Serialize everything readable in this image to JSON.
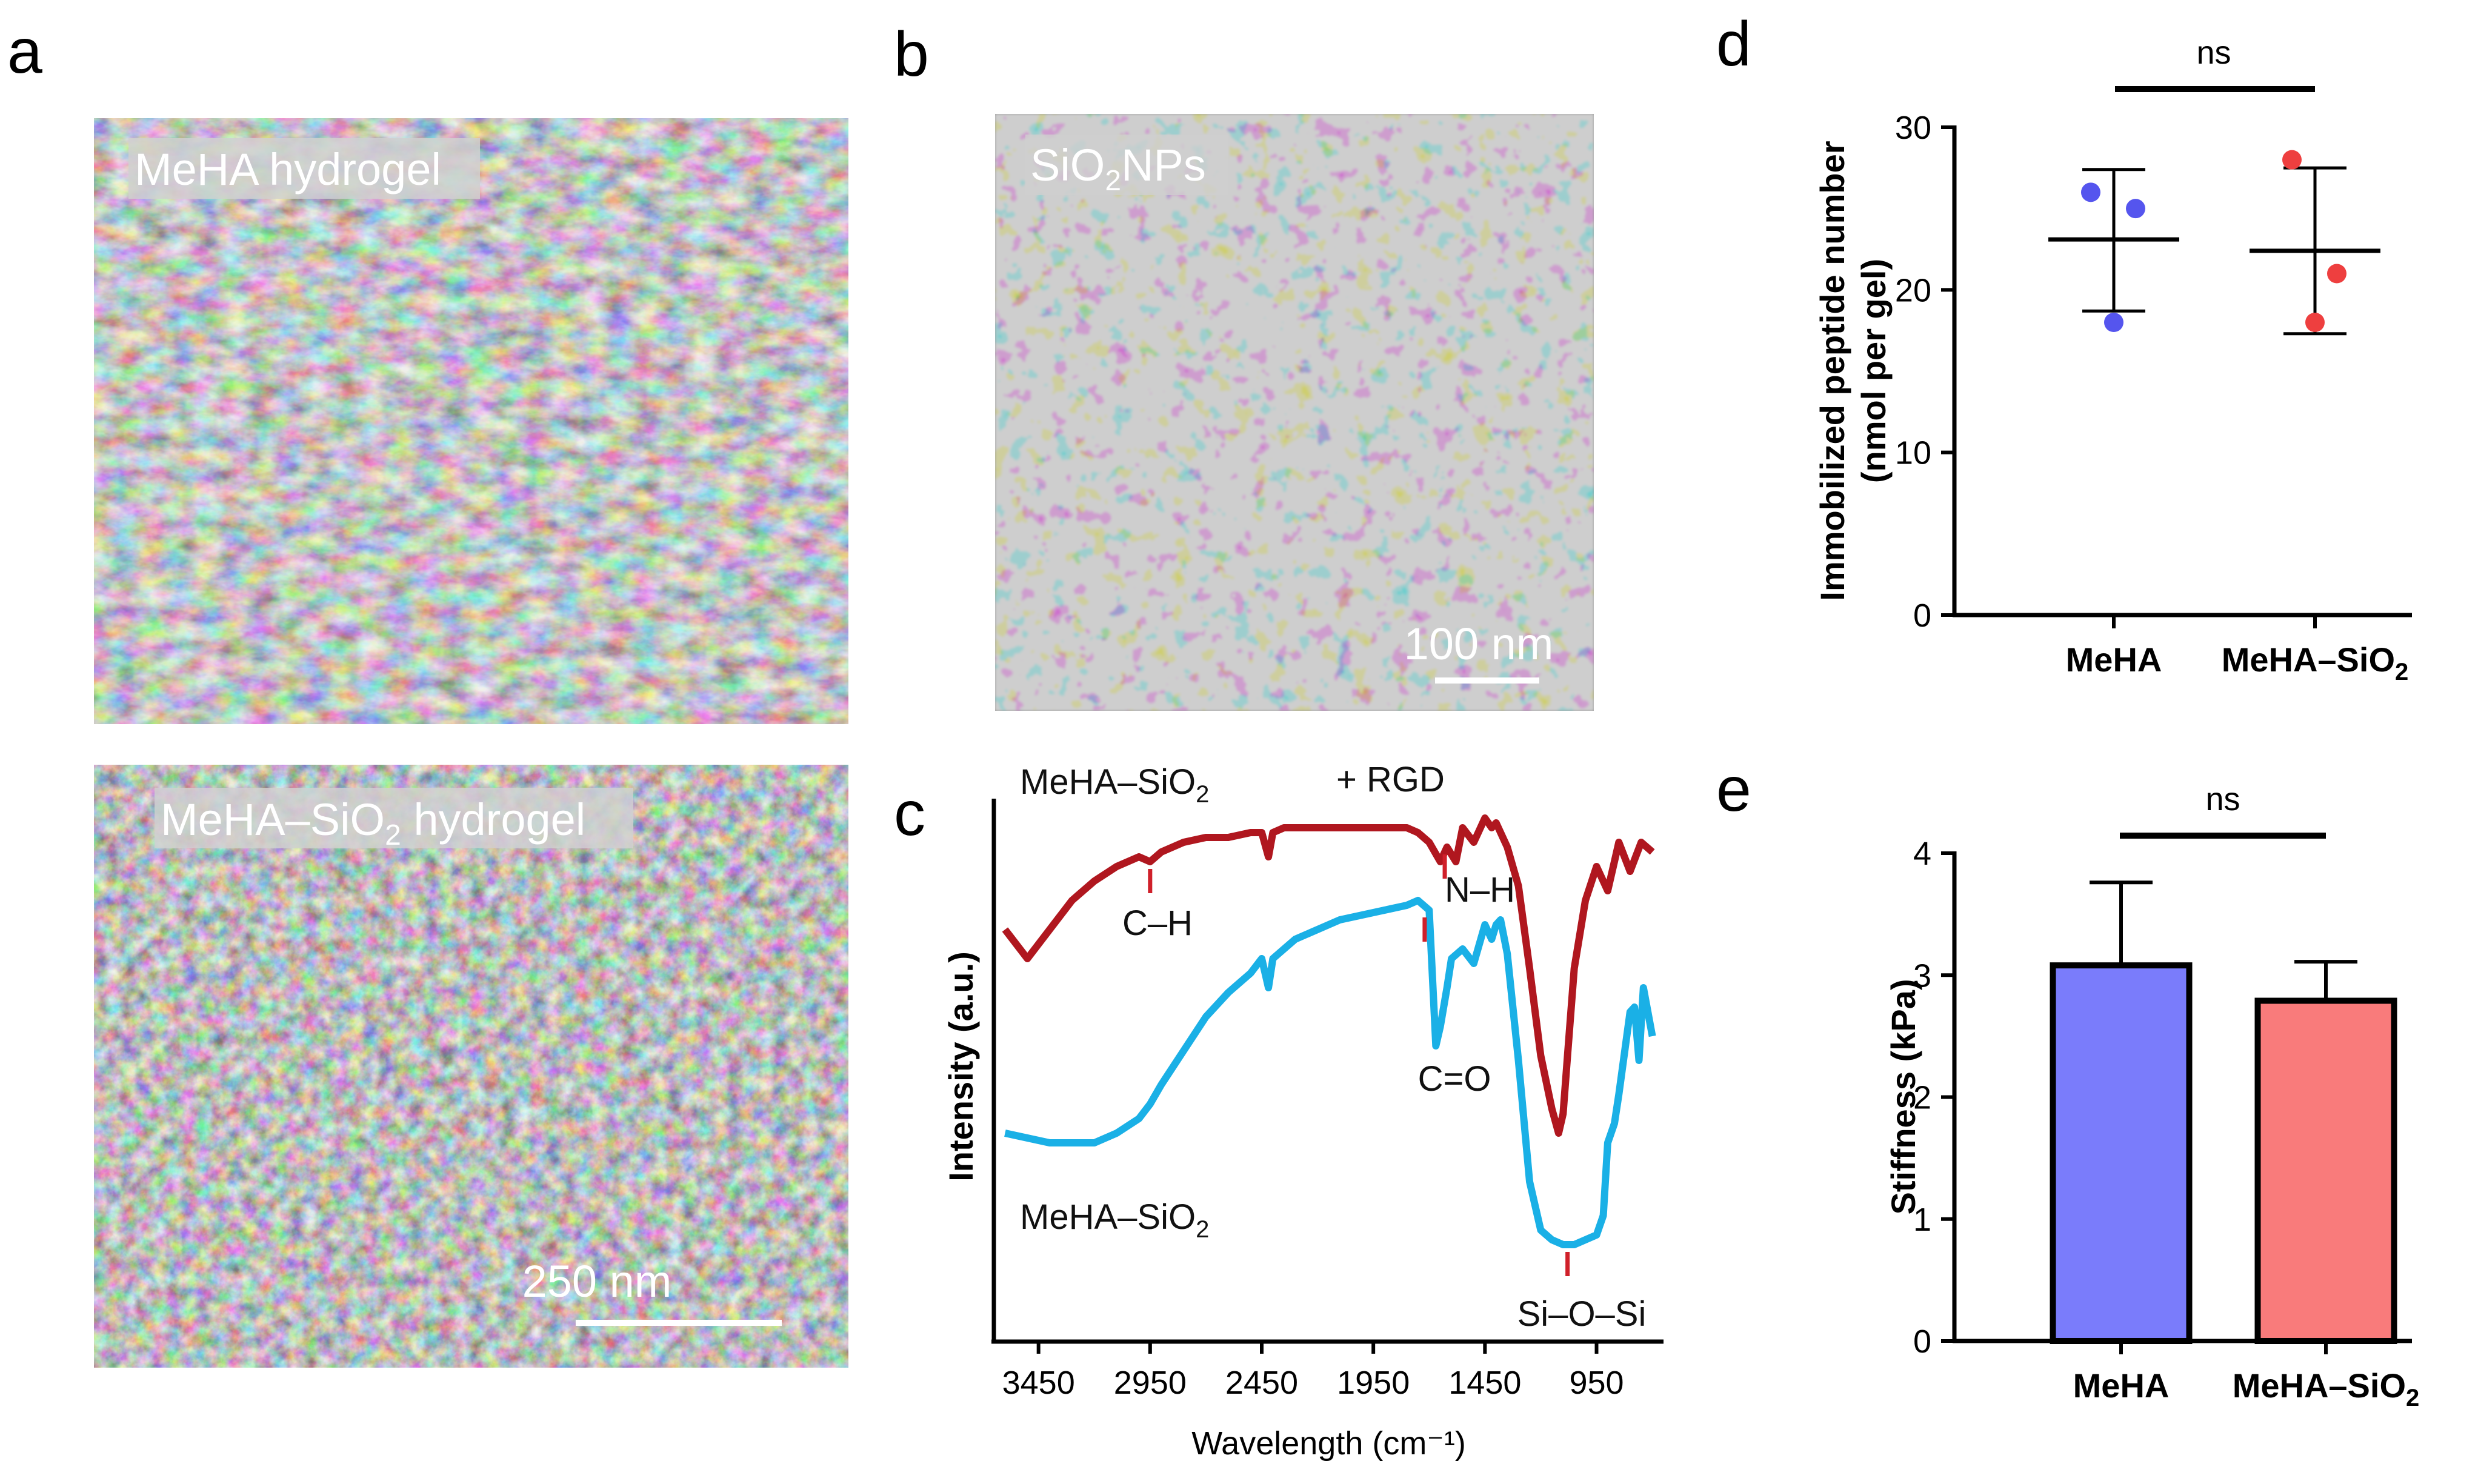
{
  "panels": {
    "a": {
      "label": "a",
      "top_image": {
        "tag": "MeHA hydrogel"
      },
      "bottom_image": {
        "tag_prefix": "MeHA–SiO",
        "tag_sub": "2",
        "tag_suffix": " hydrogel",
        "scale_bar": "250 nm"
      }
    },
    "b": {
      "label": "b",
      "image": {
        "tag_prefix": "SiO",
        "tag_sub": "2",
        "tag_suffix": "NPs",
        "scale_bar": "100 nm"
      }
    },
    "c": {
      "label": "c",
      "top_label_prefix": "MeHA–SiO",
      "top_label_sub": "2",
      "top_label_suffix": "+ RGD",
      "bottom_label_prefix": "MeHA–SiO",
      "bottom_label_sub": "2",
      "peaks": {
        "ch": "C–H",
        "nh": "N–H",
        "co": "C=O",
        "sioSi": "Si–O–Si"
      }
    },
    "d": {
      "label": "d",
      "sig": "ns"
    },
    "e": {
      "label": "e",
      "sig": "ns"
    }
  },
  "chart_data": [
    {
      "panel": "c",
      "type": "line",
      "xlabel": "Wavelength  (cm⁻¹)",
      "ylabel": "Intensity (a.u.)",
      "x_ticks": [
        3450,
        2950,
        2450,
        1950,
        1450,
        950
      ],
      "xlim": [
        3650,
        650
      ],
      "series": [
        {
          "name": "MeHA–SiO2 + RGD",
          "color": "#b0171f",
          "x": [
            3600,
            3500,
            3400,
            3300,
            3200,
            3100,
            3000,
            2950,
            2900,
            2850,
            2800,
            2700,
            2600,
            2500,
            2450,
            2420,
            2400,
            2350,
            2300,
            2200,
            2100,
            2000,
            1900,
            1800,
            1750,
            1700,
            1650,
            1620,
            1580,
            1550,
            1500,
            1480,
            1450,
            1420,
            1400,
            1350,
            1300,
            1250,
            1200,
            1150,
            1120,
            1100,
            1080,
            1050,
            1000,
            950,
            900,
            850,
            800,
            750,
            700
          ],
          "y": [
            0.72,
            0.66,
            0.72,
            0.78,
            0.82,
            0.85,
            0.87,
            0.86,
            0.88,
            0.89,
            0.9,
            0.91,
            0.91,
            0.92,
            0.92,
            0.87,
            0.92,
            0.93,
            0.93,
            0.93,
            0.93,
            0.93,
            0.93,
            0.93,
            0.92,
            0.9,
            0.86,
            0.89,
            0.86,
            0.93,
            0.9,
            0.92,
            0.95,
            0.93,
            0.94,
            0.89,
            0.81,
            0.64,
            0.46,
            0.35,
            0.3,
            0.34,
            0.46,
            0.64,
            0.78,
            0.85,
            0.8,
            0.9,
            0.84,
            0.9,
            0.88
          ]
        },
        {
          "name": "MeHA–SiO2",
          "color": "#1ab0e6",
          "x": [
            3600,
            3500,
            3400,
            3300,
            3200,
            3100,
            3000,
            2950,
            2900,
            2800,
            2700,
            2600,
            2500,
            2450,
            2420,
            2400,
            2350,
            2300,
            2200,
            2100,
            2000,
            1900,
            1800,
            1750,
            1700,
            1670,
            1650,
            1620,
            1600,
            1550,
            1500,
            1450,
            1420,
            1400,
            1380,
            1350,
            1300,
            1250,
            1200,
            1150,
            1100,
            1050,
            1000,
            950,
            920,
            900,
            870,
            850,
            800,
            780,
            760,
            740,
            700
          ],
          "y": [
            0.3,
            0.29,
            0.28,
            0.28,
            0.28,
            0.3,
            0.33,
            0.36,
            0.4,
            0.47,
            0.54,
            0.59,
            0.63,
            0.66,
            0.6,
            0.66,
            0.68,
            0.7,
            0.72,
            0.74,
            0.75,
            0.76,
            0.77,
            0.78,
            0.76,
            0.48,
            0.52,
            0.6,
            0.66,
            0.68,
            0.65,
            0.73,
            0.7,
            0.73,
            0.74,
            0.67,
            0.45,
            0.2,
            0.1,
            0.08,
            0.07,
            0.07,
            0.08,
            0.09,
            0.13,
            0.28,
            0.32,
            0.38,
            0.55,
            0.56,
            0.45,
            0.6,
            0.5
          ]
        }
      ]
    },
    {
      "panel": "d",
      "type": "scatter",
      "ylabel_line1": "Immobilized peptide number",
      "ylabel_line2": "(nmol per gel)",
      "ylim": [
        0,
        30
      ],
      "y_ticks": [
        0,
        10,
        20,
        30
      ],
      "categories": [
        {
          "name": "MeHA",
          "sub": "",
          "color": "#5555ee",
          "points": [
            26,
            25,
            18
          ],
          "mean": 23.1,
          "sd_low": 18.7,
          "sd_high": 27.4
        },
        {
          "name": "MeHA–SiO",
          "sub": "2",
          "color": "#ee3f3f",
          "points": [
            28,
            21,
            18
          ],
          "mean": 22.4,
          "sd_low": 17.3,
          "sd_high": 27.5
        }
      ]
    },
    {
      "panel": "e",
      "type": "bar",
      "ylabel": "Stiffness (kPa)",
      "ylim": [
        0,
        4
      ],
      "y_ticks": [
        0,
        1,
        2,
        3,
        4
      ],
      "categories": [
        {
          "name": "MeHA",
          "sub": "",
          "color": "#7a7cfb",
          "value": 3.08,
          "err_high": 3.76
        },
        {
          "name": "MeHA–SiO",
          "sub": "2",
          "color": "#f97b7b",
          "value": 2.79,
          "err_high": 3.11
        }
      ]
    }
  ]
}
